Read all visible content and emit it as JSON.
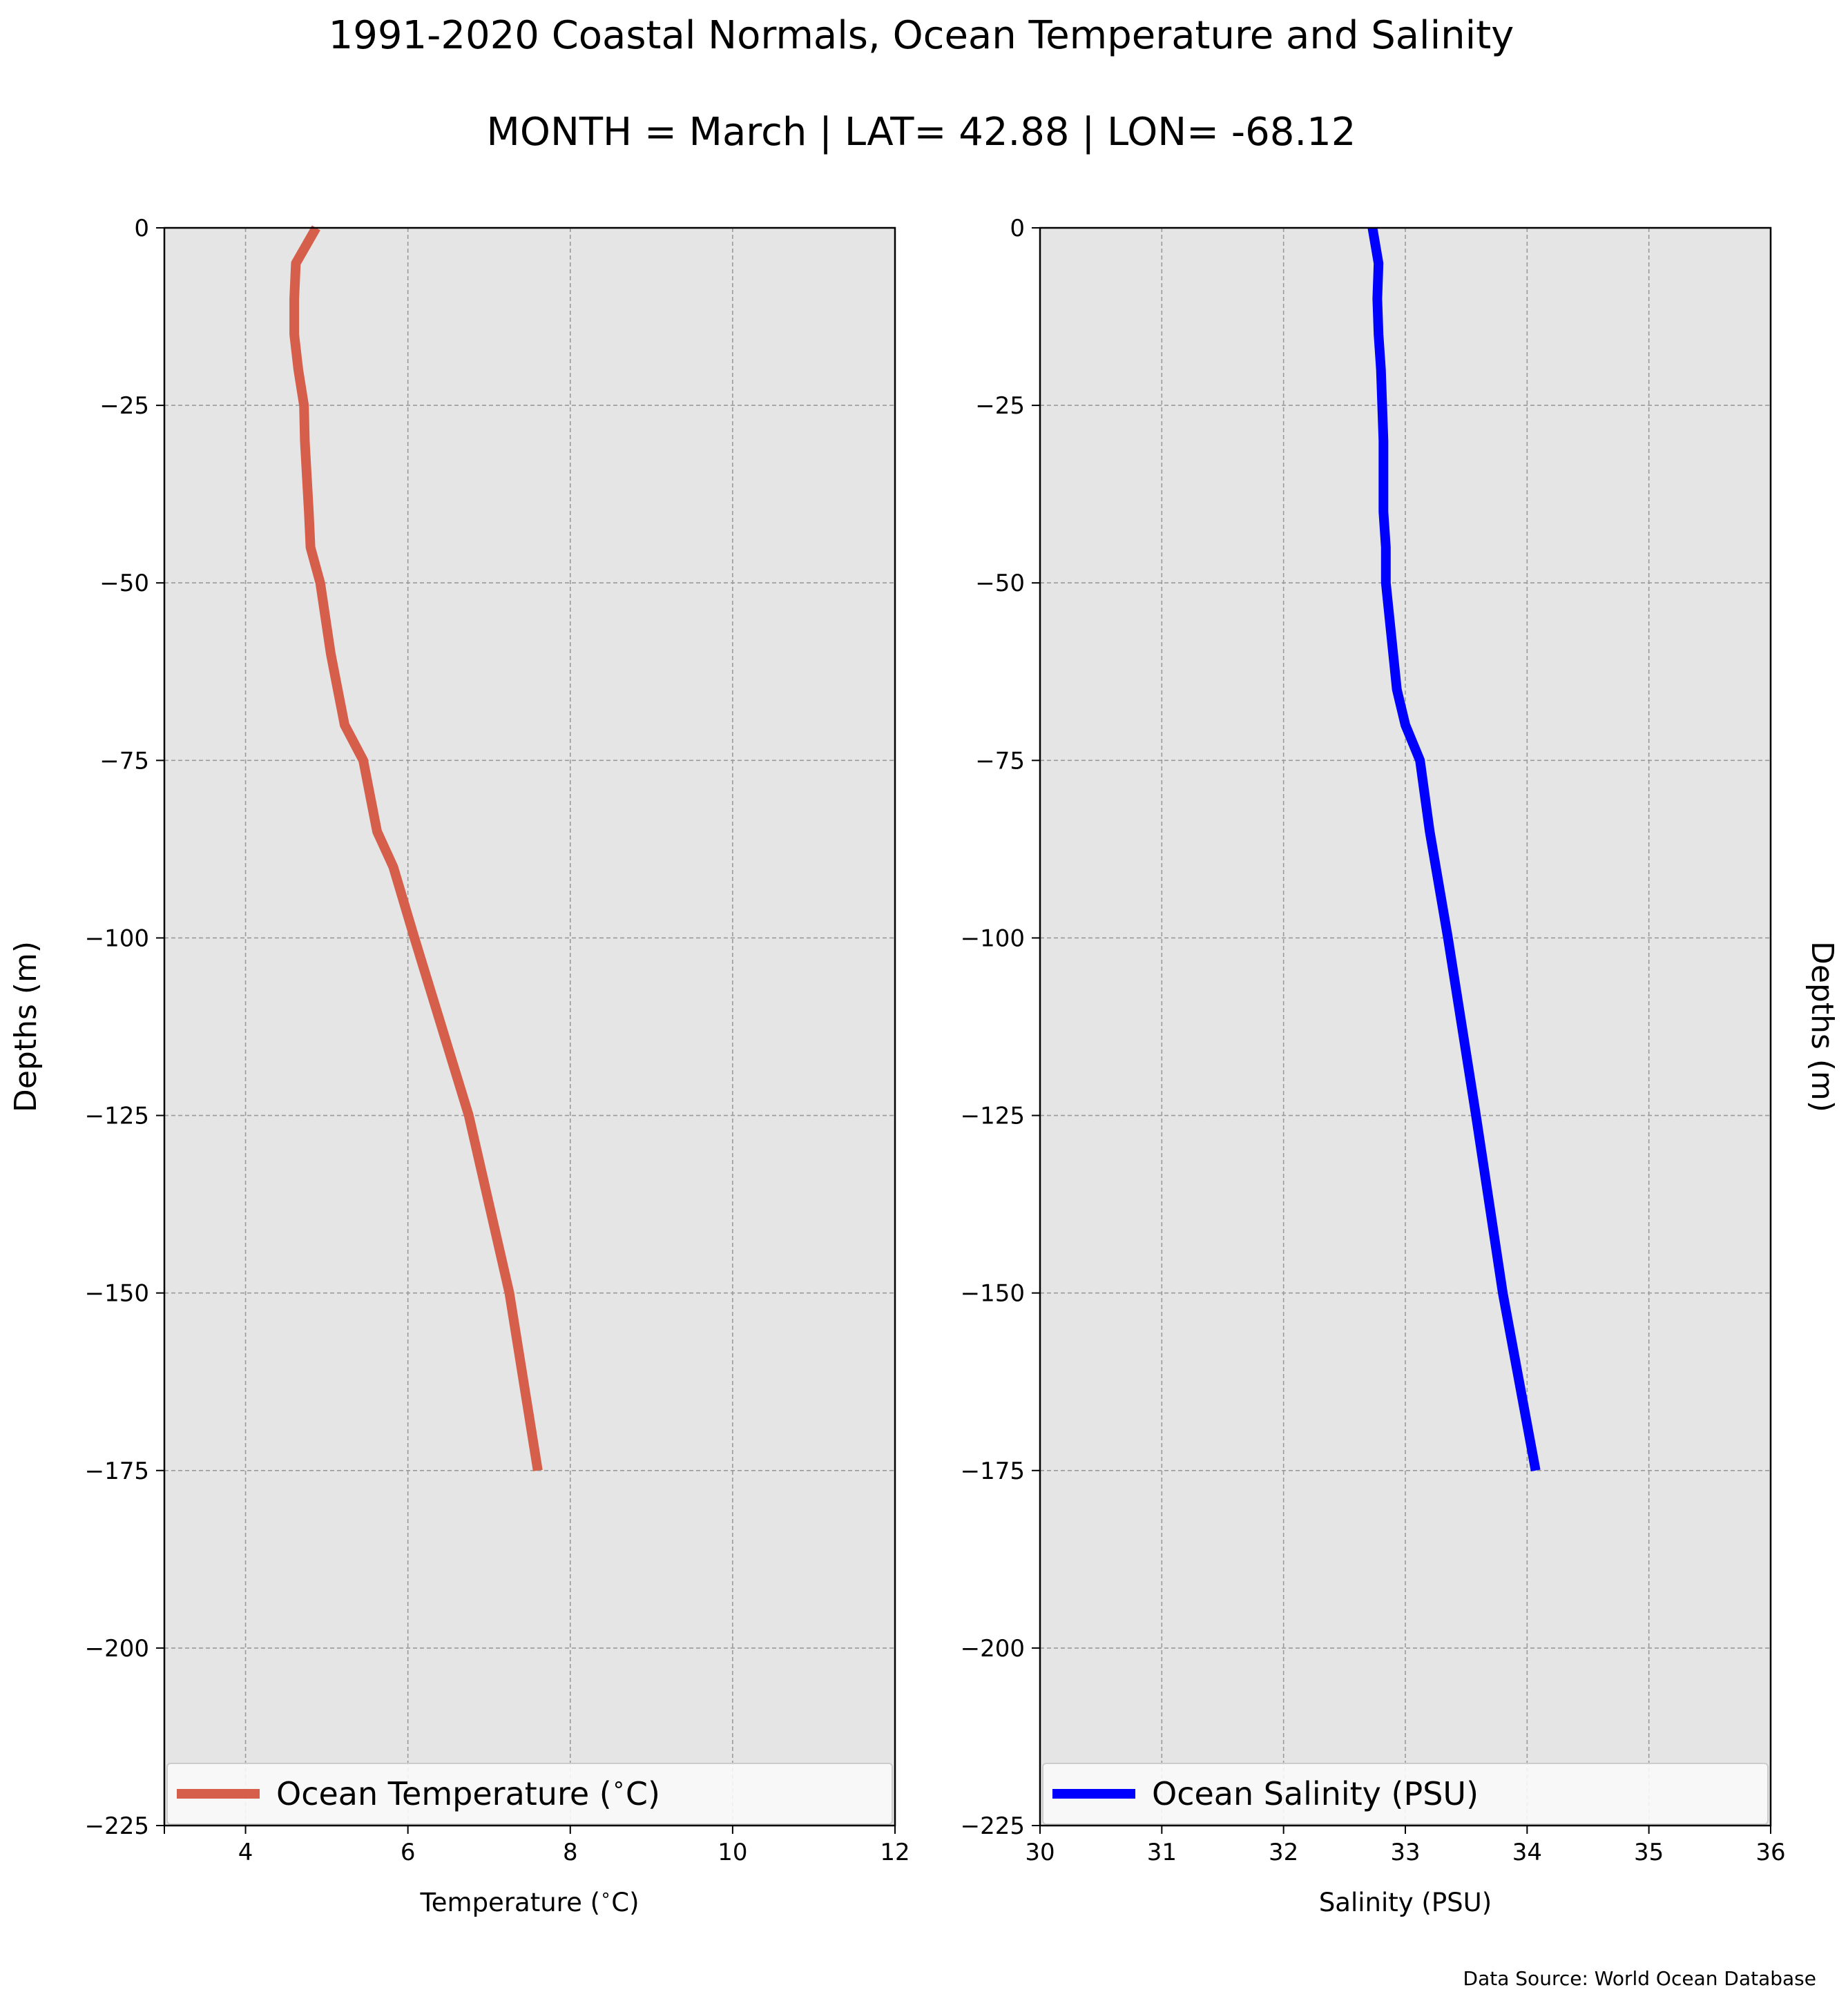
{
  "title": "1991-2020 Coastal Normals, Ocean Temperature and Salinity",
  "subtitle": "MONTH = March | LAT= 42.88 | LON= -68.12",
  "source": "Data Source: World Ocean Database",
  "chart_data": [
    {
      "type": "line",
      "xlabel": "Temperature ($^\\circ$C)",
      "ylabel": "Depths (m)",
      "xlim": [
        3,
        12
      ],
      "ylim": [
        -225,
        0
      ],
      "xticks": [
        4,
        6,
        8,
        10,
        12
      ],
      "yticks": [
        0,
        -25,
        -50,
        -75,
        -100,
        -125,
        -150,
        -175,
        -200,
        -225
      ],
      "grid": true,
      "legend": "bottom",
      "color": "#d65f4c",
      "series": [
        {
          "name": "Ocean Temperature ($^\\circ$C)",
          "x": [
            4.87,
            4.62,
            4.6,
            4.6,
            4.65,
            4.72,
            4.73,
            4.78,
            4.8,
            4.92,
            5.05,
            5.22,
            5.45,
            5.62,
            5.82,
            5.95,
            6.08,
            6.75,
            7.25,
            7.6
          ],
          "y": [
            0,
            -5,
            -10,
            -15,
            -20,
            -25,
            -30,
            -40,
            -45,
            -50,
            -60,
            -70,
            -75,
            -85,
            -90,
            -95,
            -100,
            -125,
            -150,
            -175
          ]
        }
      ]
    },
    {
      "type": "line",
      "xlabel": "Salinity (PSU)",
      "ylabel": "Depths (m)",
      "xlim": [
        30,
        36
      ],
      "ylim": [
        -225,
        0
      ],
      "xticks": [
        30,
        31,
        32,
        33,
        34,
        35,
        36
      ],
      "yticks": [
        0,
        -25,
        -50,
        -75,
        -100,
        -125,
        -150,
        -175,
        -200,
        -225
      ],
      "grid": true,
      "legend": "bottom",
      "color": "#0000ff",
      "series": [
        {
          "name": "Ocean Salinity (PSU)",
          "x": [
            32.73,
            32.78,
            32.77,
            32.78,
            32.8,
            32.81,
            32.82,
            32.82,
            32.84,
            32.84,
            32.9,
            32.93,
            33.0,
            33.12,
            33.2,
            33.3,
            33.35,
            33.58,
            33.8,
            34.07
          ],
          "y": [
            0,
            -5,
            -10,
            -15,
            -20,
            -25,
            -30,
            -40,
            -45,
            -50,
            -60,
            -65,
            -70,
            -75,
            -85,
            -95,
            -100,
            -125,
            -150,
            -175
          ]
        }
      ]
    }
  ]
}
